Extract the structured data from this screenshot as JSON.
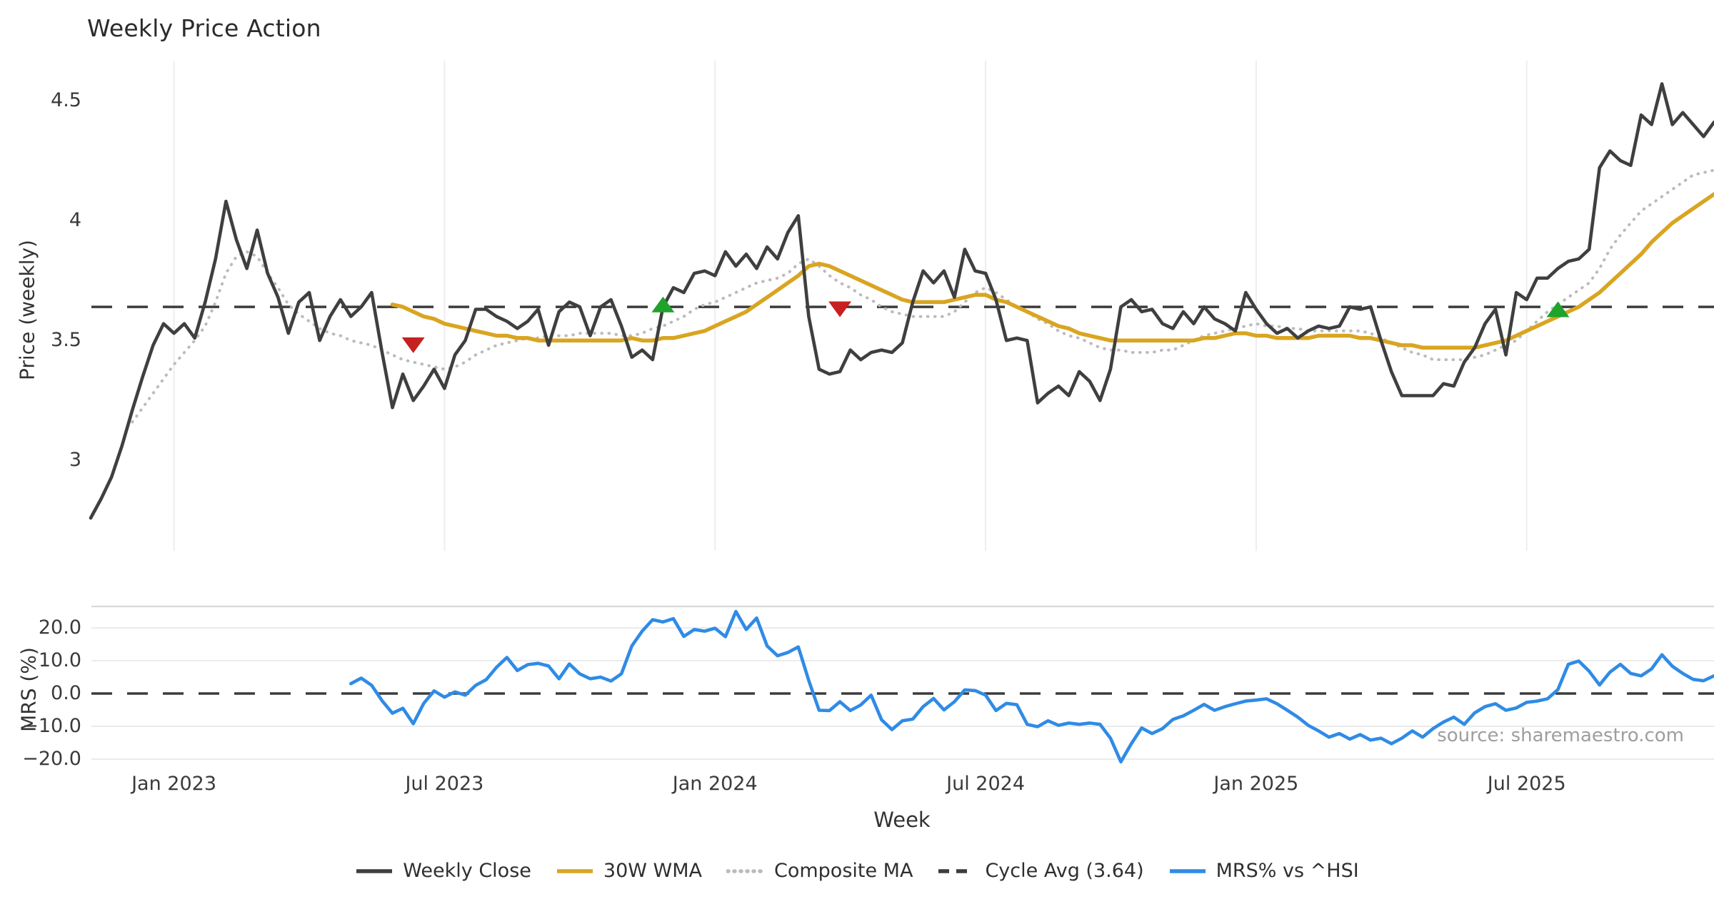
{
  "title": "Weekly Price Action",
  "xlabel": "Week",
  "source_note": "source: sharemaestro.com",
  "price_panel": {
    "ylabel": "Price (weekly)",
    "yticks": [
      {
        "value": 4.5,
        "label": "4.5"
      },
      {
        "value": 4.0,
        "label": "4"
      },
      {
        "value": 3.5,
        "label": "3.5"
      },
      {
        "value": 3.0,
        "label": "3"
      }
    ]
  },
  "mrs_panel": {
    "ylabel": "MRS (%)",
    "yticks": [
      {
        "value": 20,
        "label": "20.0"
      },
      {
        "value": 10,
        "label": "10.0"
      },
      {
        "value": 0,
        "label": "0.0"
      },
      {
        "value": -10,
        "label": "−10.0"
      },
      {
        "value": -20,
        "label": "−20.0"
      }
    ]
  },
  "xticks": [
    {
      "week": 8,
      "label": "Jan 2023"
    },
    {
      "week": 34,
      "label": "Jul 2023"
    },
    {
      "week": 60,
      "label": "Jan 2024"
    },
    {
      "week": 86,
      "label": "Jul 2024"
    },
    {
      "week": 112,
      "label": "Jan 2025"
    },
    {
      "week": 138,
      "label": "Jul 2025"
    }
  ],
  "colors": {
    "weekly_close": "#3f3f3f",
    "wma": "#d9a521",
    "composite": "#bbbbbb",
    "cycle_avg": "#3c3c3c",
    "mrs": "#2f8be6",
    "sell_marker": "#c62020",
    "buy_marker": "#1fa32b",
    "grid_vertical": "#ededf2",
    "grid_horizontal": "#e8e8ea",
    "panel_border": "#d8d8dc",
    "source_text": "#9e9e9e"
  },
  "legend": [
    {
      "label": "Weekly Close",
      "color": "#3f3f3f",
      "style": "solid"
    },
    {
      "label": "30W WMA",
      "color": "#d9a521",
      "style": "solid"
    },
    {
      "label": "Composite MA",
      "color": "#bbbbbb",
      "style": "dotted"
    },
    {
      "label": "Cycle Avg (3.64)",
      "color": "#3c3c3c",
      "style": "dashed"
    },
    {
      "label": "MRS% vs ^HSI",
      "color": "#2f8be6",
      "style": "solid"
    }
  ],
  "chart_data": [
    {
      "type": "line",
      "panel": "price",
      "title": "Weekly Price Action",
      "xlabel": "Week",
      "ylabel": "Price (weekly)",
      "x_start_date": "2022-11-07",
      "x_freq": "weekly",
      "n_weeks": 157,
      "ylim": [
        2.62,
        4.67
      ],
      "grid": "vertical-only",
      "cycle_avg": 3.64,
      "series": [
        {
          "name": "Weekly Close",
          "start_week": 0,
          "values": [
            2.76,
            2.84,
            2.93,
            3.06,
            3.21,
            3.35,
            3.48,
            3.57,
            3.53,
            3.57,
            3.51,
            3.66,
            3.84,
            4.08,
            3.92,
            3.8,
            3.96,
            3.78,
            3.68,
            3.53,
            3.66,
            3.7,
            3.5,
            3.6,
            3.67,
            3.6,
            3.64,
            3.7,
            3.45,
            3.22,
            3.36,
            3.25,
            3.31,
            3.38,
            3.3,
            3.44,
            3.5,
            3.63,
            3.63,
            3.6,
            3.58,
            3.55,
            3.58,
            3.63,
            3.48,
            3.62,
            3.66,
            3.64,
            3.52,
            3.64,
            3.67,
            3.56,
            3.43,
            3.46,
            3.42,
            3.64,
            3.72,
            3.7,
            3.78,
            3.79,
            3.77,
            3.87,
            3.81,
            3.86,
            3.8,
            3.89,
            3.84,
            3.95,
            4.02,
            3.6,
            3.38,
            3.36,
            3.37,
            3.46,
            3.42,
            3.45,
            3.46,
            3.45,
            3.49,
            3.66,
            3.79,
            3.74,
            3.79,
            3.68,
            3.88,
            3.79,
            3.78,
            3.67,
            3.5,
            3.51,
            3.5,
            3.24,
            3.28,
            3.31,
            3.27,
            3.37,
            3.33,
            3.25,
            3.38,
            3.64,
            3.67,
            3.62,
            3.63,
            3.57,
            3.55,
            3.62,
            3.57,
            3.64,
            3.59,
            3.57,
            3.54,
            3.7,
            3.63,
            3.57,
            3.53,
            3.55,
            3.51,
            3.54,
            3.56,
            3.55,
            3.56,
            3.64,
            3.63,
            3.64,
            3.5,
            3.37,
            3.27,
            3.27,
            3.27,
            3.27,
            3.32,
            3.31,
            3.41,
            3.47,
            3.57,
            3.63,
            3.44,
            3.7,
            3.67,
            3.76,
            3.76,
            3.8,
            3.83,
            3.84,
            3.88,
            4.22,
            4.29,
            4.25,
            4.23,
            4.44,
            4.4,
            4.57,
            4.4,
            4.45,
            4.4,
            4.35,
            4.41
          ]
        },
        {
          "name": "30W WMA",
          "start_week": 29,
          "values": [
            3.65,
            3.64,
            3.62,
            3.6,
            3.59,
            3.57,
            3.56,
            3.55,
            3.54,
            3.53,
            3.52,
            3.52,
            3.51,
            3.51,
            3.5,
            3.5,
            3.5,
            3.5,
            3.5,
            3.5,
            3.5,
            3.5,
            3.5,
            3.51,
            3.5,
            3.5,
            3.51,
            3.51,
            3.52,
            3.53,
            3.54,
            3.56,
            3.58,
            3.6,
            3.62,
            3.65,
            3.68,
            3.71,
            3.74,
            3.77,
            3.81,
            3.82,
            3.81,
            3.79,
            3.77,
            3.75,
            3.73,
            3.71,
            3.69,
            3.67,
            3.66,
            3.66,
            3.66,
            3.66,
            3.67,
            3.68,
            3.69,
            3.69,
            3.67,
            3.66,
            3.64,
            3.62,
            3.6,
            3.58,
            3.56,
            3.55,
            3.53,
            3.52,
            3.51,
            3.5,
            3.5,
            3.5,
            3.5,
            3.5,
            3.5,
            3.5,
            3.5,
            3.5,
            3.51,
            3.51,
            3.52,
            3.53,
            3.53,
            3.52,
            3.52,
            3.51,
            3.51,
            3.51,
            3.51,
            3.52,
            3.52,
            3.52,
            3.52,
            3.51,
            3.51,
            3.5,
            3.49,
            3.48,
            3.48,
            3.47,
            3.47,
            3.47,
            3.47,
            3.47,
            3.47,
            3.48,
            3.49,
            3.5,
            3.52,
            3.54,
            3.56,
            3.58,
            3.6,
            3.62,
            3.64,
            3.67,
            3.7,
            3.74,
            3.78,
            3.82,
            3.86,
            3.91,
            3.95,
            3.99,
            4.02,
            4.05,
            4.08,
            4.11
          ]
        },
        {
          "name": "Composite MA",
          "start_week": 4,
          "values": [
            3.16,
            3.22,
            3.28,
            3.34,
            3.4,
            3.45,
            3.5,
            3.56,
            3.66,
            3.78,
            3.85,
            3.87,
            3.85,
            3.78,
            3.72,
            3.65,
            3.61,
            3.58,
            3.55,
            3.53,
            3.52,
            3.5,
            3.49,
            3.48,
            3.46,
            3.44,
            3.42,
            3.41,
            3.4,
            3.39,
            3.38,
            3.39,
            3.41,
            3.44,
            3.46,
            3.48,
            3.49,
            3.5,
            3.51,
            3.51,
            3.52,
            3.52,
            3.52,
            3.53,
            3.53,
            3.53,
            3.53,
            3.52,
            3.52,
            3.53,
            3.55,
            3.56,
            3.58,
            3.6,
            3.63,
            3.65,
            3.66,
            3.68,
            3.7,
            3.72,
            3.74,
            3.75,
            3.76,
            3.78,
            3.82,
            3.84,
            3.81,
            3.77,
            3.74,
            3.72,
            3.69,
            3.67,
            3.64,
            3.62,
            3.61,
            3.6,
            3.6,
            3.6,
            3.6,
            3.62,
            3.66,
            3.7,
            3.72,
            3.7,
            3.67,
            3.64,
            3.62,
            3.59,
            3.57,
            3.54,
            3.52,
            3.51,
            3.49,
            3.47,
            3.46,
            3.46,
            3.45,
            3.45,
            3.45,
            3.46,
            3.46,
            3.48,
            3.5,
            3.52,
            3.53,
            3.54,
            3.55,
            3.56,
            3.57,
            3.56,
            3.56,
            3.55,
            3.55,
            3.54,
            3.54,
            3.54,
            3.54,
            3.54,
            3.54,
            3.53,
            3.51,
            3.49,
            3.47,
            3.45,
            3.44,
            3.42,
            3.42,
            3.42,
            3.42,
            3.43,
            3.44,
            3.46,
            3.48,
            3.5,
            3.54,
            3.58,
            3.62,
            3.65,
            3.68,
            3.71,
            3.74,
            3.8,
            3.88,
            3.94,
            3.99,
            4.04,
            4.07,
            4.1,
            4.13,
            4.16,
            4.19,
            4.2,
            4.21
          ]
        },
        {
          "name": "Cycle Avg",
          "type": "hline",
          "value": 3.64,
          "style": "dashed"
        }
      ],
      "signals": [
        {
          "type": "sell",
          "week": 31,
          "price": 3.48
        },
        {
          "type": "buy",
          "week": 55,
          "price": 3.65
        },
        {
          "type": "sell",
          "week": 72,
          "price": 3.63
        },
        {
          "type": "buy",
          "week": 141,
          "price": 3.63
        }
      ]
    },
    {
      "type": "line",
      "panel": "mrs",
      "ylabel": "MRS (%)",
      "ylim": [
        -22.5,
        26.5
      ],
      "grid": "horizontal-only",
      "zero_line": 0.0,
      "series": [
        {
          "name": "MRS% vs ^HSI",
          "start_week": 25,
          "values": [
            3.0,
            4.7,
            2.5,
            -2.2,
            -6.0,
            -4.5,
            -9.2,
            -3.0,
            0.8,
            -1.1,
            0.5,
            -0.5,
            2.5,
            4.2,
            8.0,
            11.0,
            7.0,
            8.8,
            9.2,
            8.4,
            4.5,
            9.0,
            6.0,
            4.5,
            5.0,
            3.8,
            6.0,
            14.5,
            19.0,
            22.5,
            21.8,
            22.8,
            17.4,
            19.5,
            19.0,
            19.9,
            17.3,
            25.0,
            19.5,
            23.0,
            14.5,
            11.5,
            12.5,
            14.2,
            4.0,
            -5.1,
            -5.2,
            -2.5,
            -5.2,
            -3.5,
            -0.5,
            -8.0,
            -11.0,
            -8.3,
            -7.8,
            -4.0,
            -1.5,
            -5.0,
            -2.5,
            1.1,
            0.9,
            -0.5,
            -5.2,
            -3.0,
            -3.4,
            -9.4,
            -10.1,
            -8.3,
            -9.7,
            -9.0,
            -9.4,
            -9.0,
            -9.4,
            -13.6,
            -20.8,
            -15.3,
            -10.5,
            -12.2,
            -10.7,
            -7.9,
            -6.8,
            -5.1,
            -3.3,
            -5.1,
            -4.0,
            -3.1,
            -2.3,
            -2.0,
            -1.6,
            -3.1,
            -5.1,
            -7.2,
            -9.7,
            -11.4,
            -13.3,
            -12.2,
            -13.9,
            -12.5,
            -14.2,
            -13.6,
            -15.3,
            -13.6,
            -11.4,
            -13.3,
            -10.7,
            -8.7,
            -7.2,
            -9.4,
            -5.9,
            -4.0,
            -3.1,
            -5.1,
            -4.4,
            -2.7,
            -2.3,
            -1.6,
            1.2,
            8.9,
            9.9,
            6.8,
            2.6,
            6.5,
            8.9,
            6.1,
            5.4,
            7.5,
            11.8,
            8.3,
            6.1,
            4.3,
            3.9,
            5.4
          ]
        }
      ]
    }
  ]
}
